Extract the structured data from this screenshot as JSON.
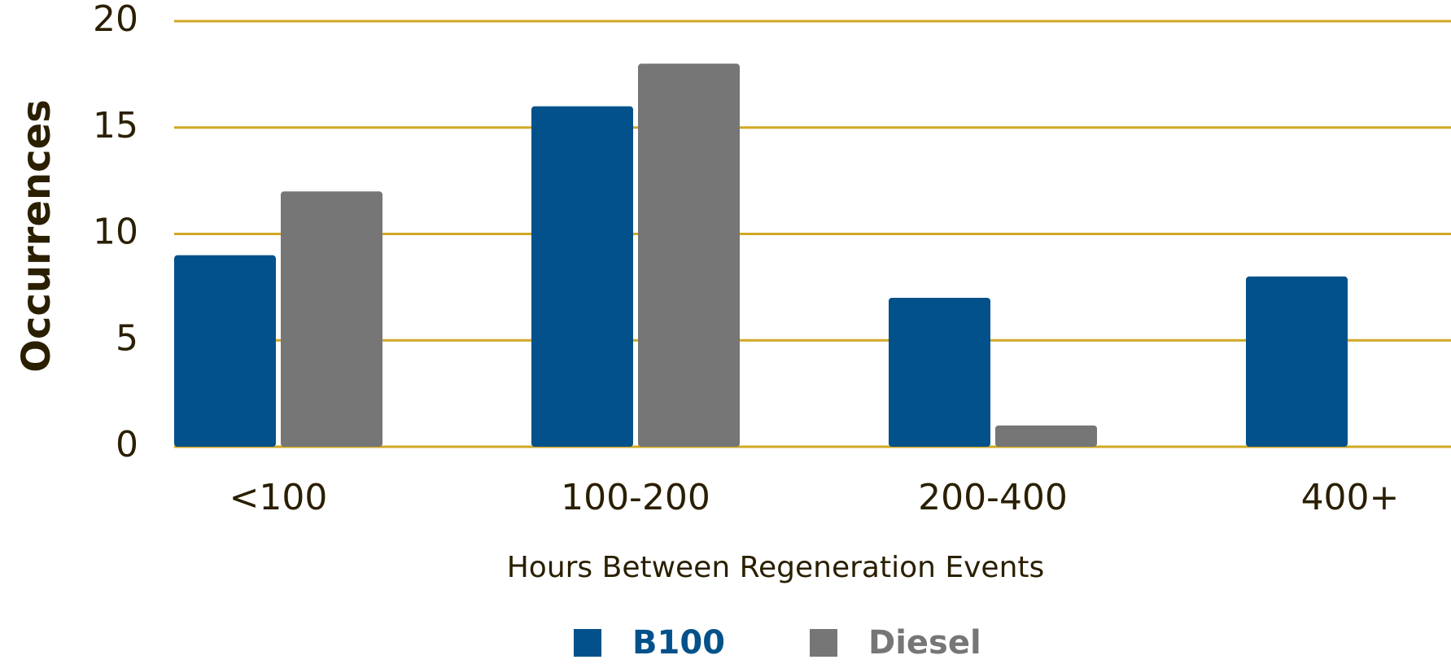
{
  "chart_data": {
    "type": "bar",
    "x_label": "Hours Between Regeneration Events",
    "y_label": "Occurrences",
    "categories": [
      "<100",
      "100-200",
      "200-400",
      "400+"
    ],
    "series": [
      {
        "name": "B100",
        "color": "#03518a",
        "values": [
          9,
          16,
          7,
          8
        ]
      },
      {
        "name": "Diesel",
        "color": "#767676",
        "values": [
          12,
          18,
          1,
          0
        ]
      }
    ],
    "ylim": [
      0,
      20
    ],
    "yticks": [
      0,
      5,
      10,
      15,
      20
    ],
    "grid": true,
    "grid_color": "#d1a824",
    "legend": "bottom"
  }
}
